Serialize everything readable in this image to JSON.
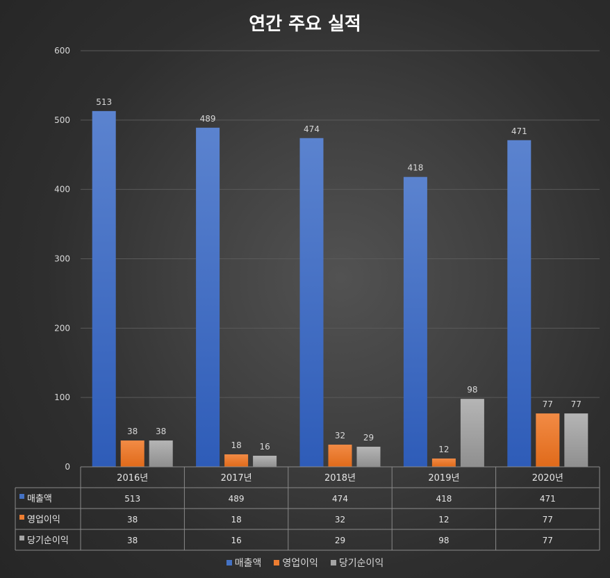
{
  "colors": {
    "sales": "#4472c4",
    "operating_profit": "#ed7d31",
    "net_income": "#a5a5a5"
  },
  "chart_data": {
    "type": "bar",
    "title": "연간 주요 실적",
    "categories": [
      "2016년",
      "2017년",
      "2018년",
      "2019년",
      "2020년"
    ],
    "series": [
      {
        "name": "매출액",
        "values": [
          513,
          489,
          474,
          418,
          471
        ]
      },
      {
        "name": "영업이익",
        "values": [
          38,
          18,
          32,
          12,
          77
        ]
      },
      {
        "name": "당기순이익",
        "values": [
          38,
          16,
          29,
          98,
          77
        ]
      }
    ],
    "ylim": [
      0,
      600
    ],
    "yticks": [
      0,
      100,
      200,
      300,
      400,
      500,
      600
    ],
    "grid": true,
    "data_table": true,
    "legend_position": "bottom"
  }
}
